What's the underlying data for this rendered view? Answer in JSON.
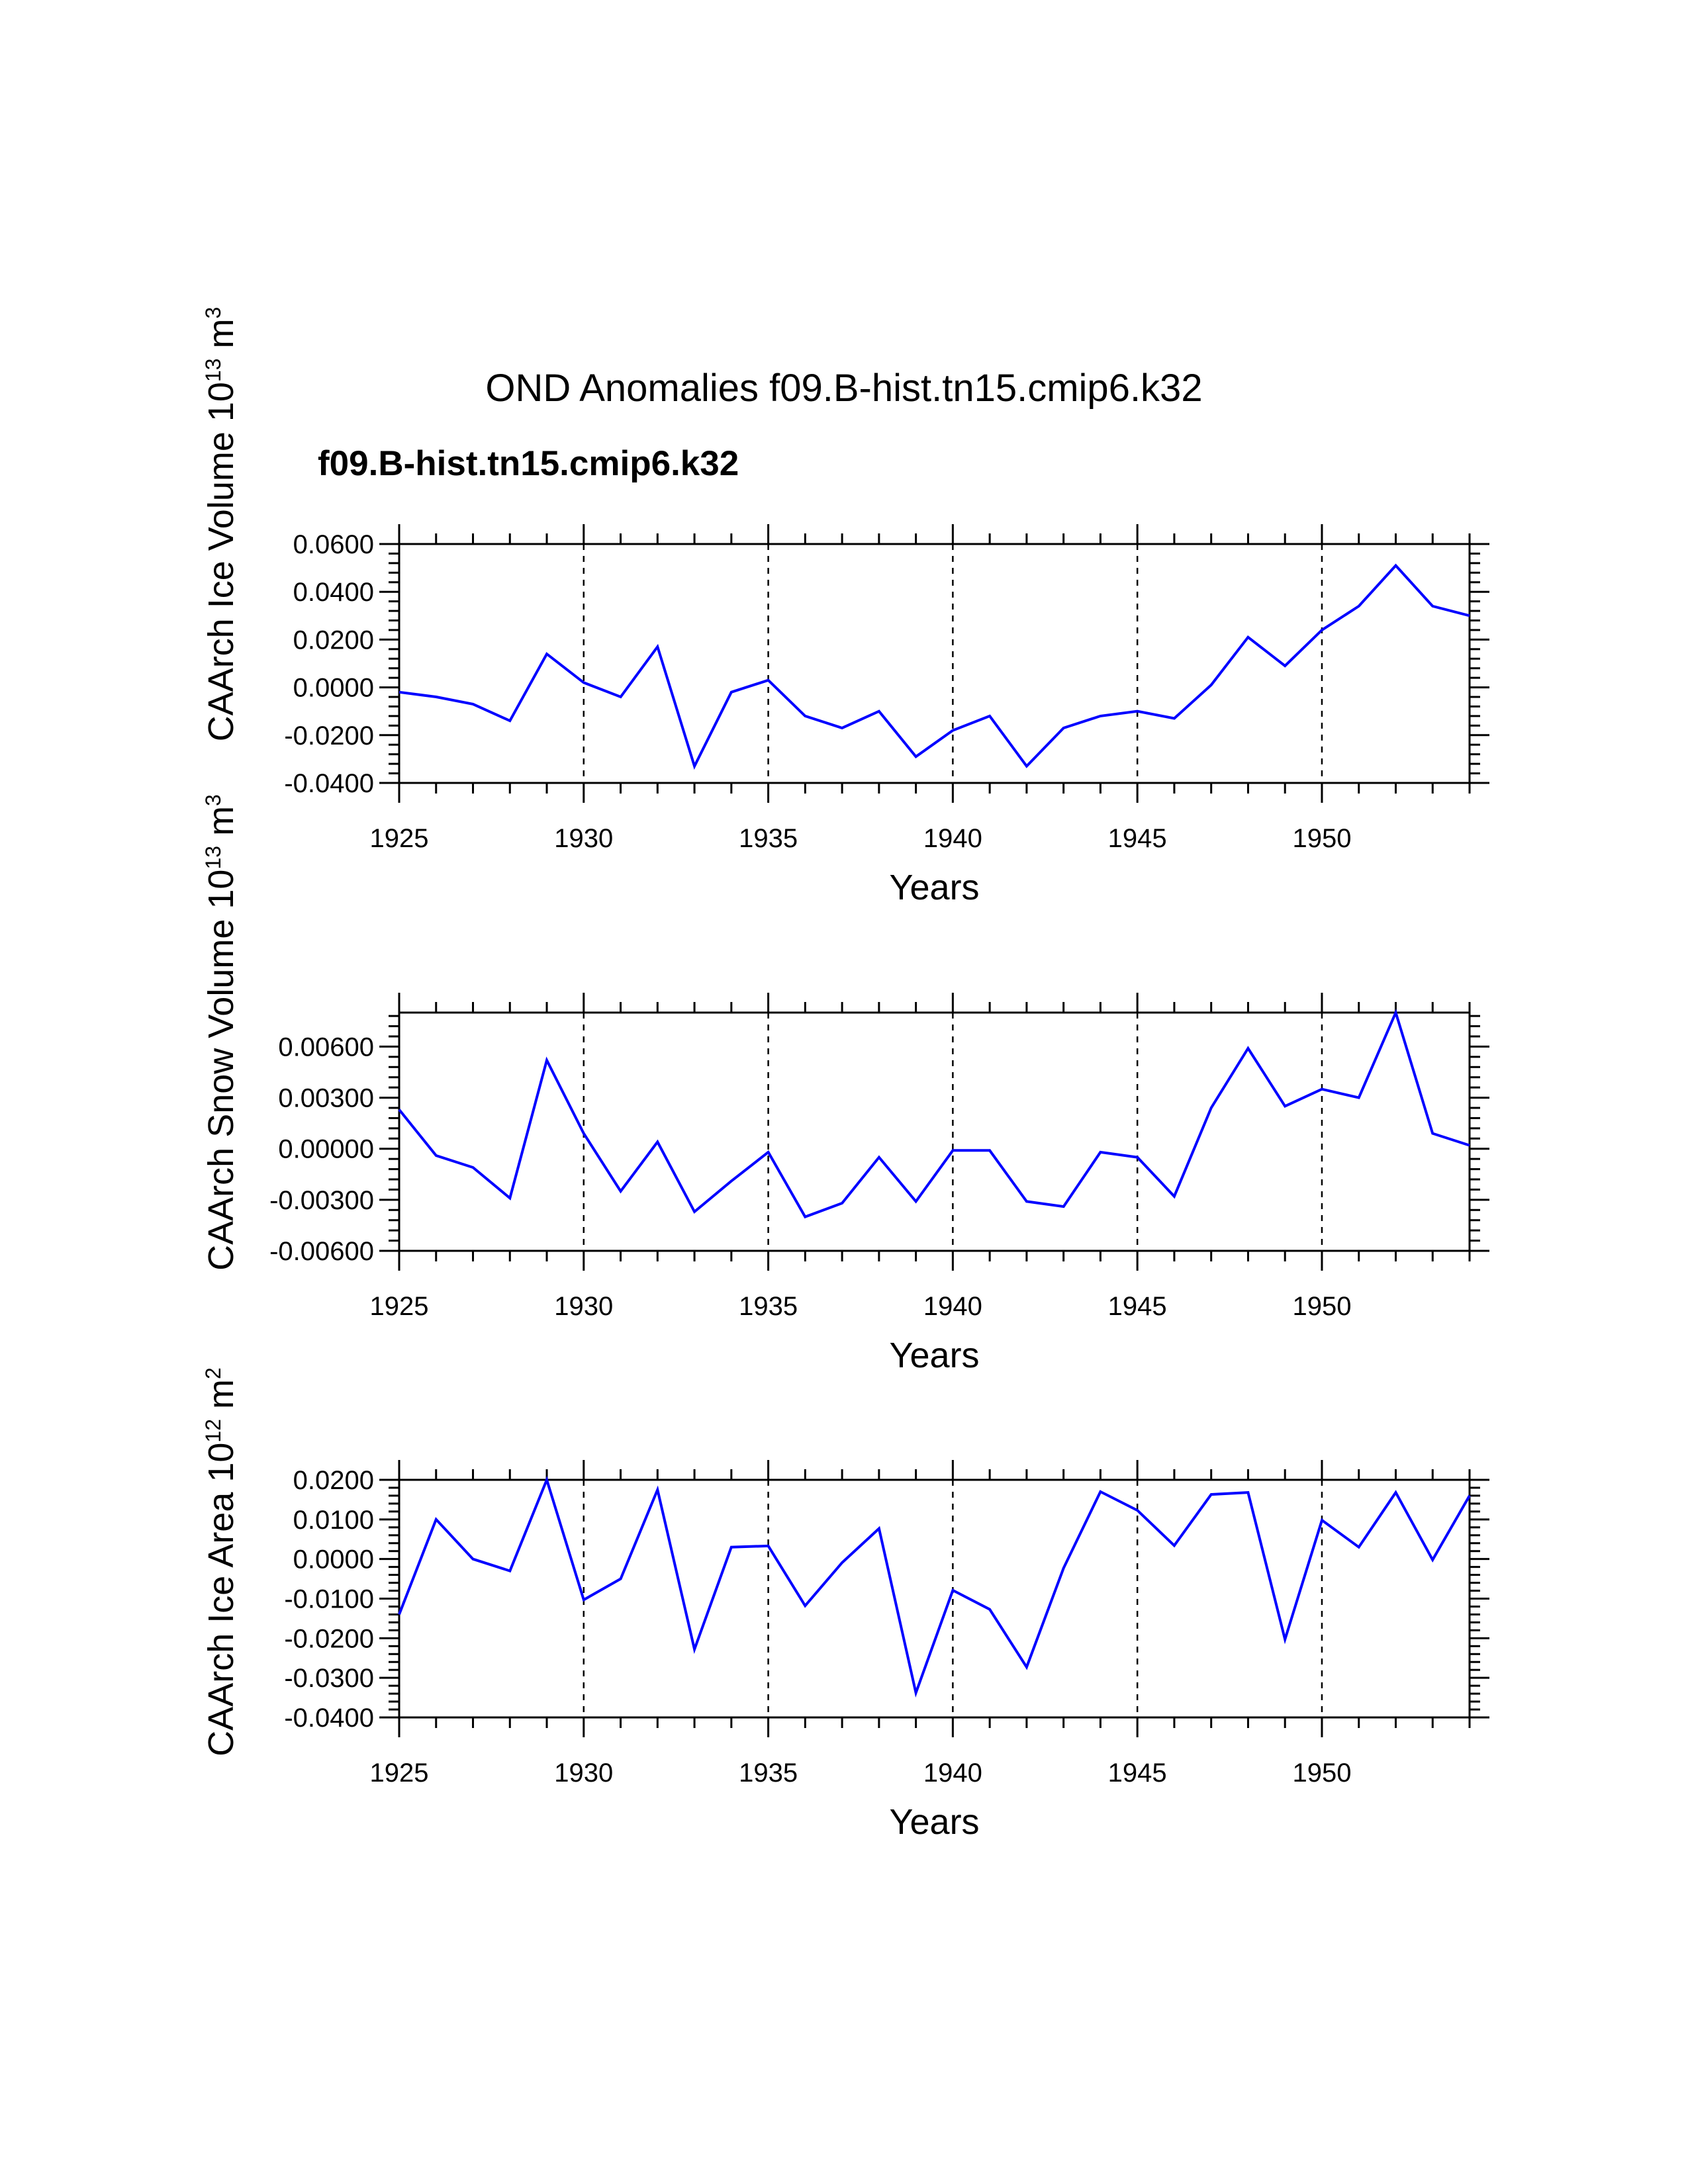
{
  "title": "OND Anomalies f09.B-hist.tn15.cmip6.k32",
  "series_label": "f09.B-hist.tn15.cmip6.k32",
  "colors": {
    "line": "#0000ff",
    "label": "#0000ff",
    "axis": "#000000"
  },
  "chart_data": [
    {
      "type": "line",
      "ylabel": {
        "text": "CAArch Ice Volume 10",
        "exp": "13",
        "unit": " m",
        "unit_exp": "3"
      },
      "xlabel": "Years",
      "xlim": [
        1925,
        1954
      ],
      "ylim": [
        -0.04,
        0.06
      ],
      "yticks": [
        -0.04,
        -0.02,
        0.0,
        0.02,
        0.04,
        0.06
      ],
      "ytick_labels": [
        "-0.0400",
        "-0.0200",
        "0.0000",
        "0.0200",
        "0.0400",
        "0.0600"
      ],
      "xticks": [
        1925,
        1930,
        1935,
        1940,
        1945,
        1950
      ],
      "xtick_labels": [
        "1925",
        "1930",
        "1935",
        "1940",
        "1945",
        "1950"
      ],
      "grid_x": [
        1930,
        1935,
        1940,
        1945,
        1950
      ],
      "series": [
        {
          "name": "f09.B-hist.tn15.cmip6.k32",
          "x": [
            1925,
            1926,
            1927,
            1928,
            1929,
            1930,
            1931,
            1932,
            1933,
            1934,
            1935,
            1936,
            1937,
            1938,
            1939,
            1940,
            1941,
            1942,
            1943,
            1944,
            1945,
            1946,
            1947,
            1948,
            1949,
            1950,
            1951,
            1952,
            1953,
            1954
          ],
          "values": [
            -0.002,
            -0.004,
            -0.007,
            -0.014,
            0.014,
            0.002,
            -0.004,
            0.017,
            -0.033,
            -0.002,
            0.003,
            -0.012,
            -0.017,
            -0.01,
            -0.029,
            -0.018,
            -0.012,
            -0.033,
            -0.017,
            -0.012,
            -0.01,
            -0.013,
            0.001,
            0.021,
            0.009,
            0.024,
            0.034,
            0.051,
            0.034,
            0.03
          ]
        }
      ]
    },
    {
      "type": "line",
      "ylabel": {
        "text": "CAArch Snow Volume 10",
        "exp": "13",
        "unit": " m",
        "unit_exp": "3"
      },
      "xlabel": "Years",
      "xlim": [
        1925,
        1954
      ],
      "ylim": [
        -0.006,
        0.008
      ],
      "yticks": [
        -0.006,
        -0.003,
        0.0,
        0.003,
        0.006
      ],
      "ytick_labels": [
        "-0.00600",
        "-0.00300",
        "0.00000",
        "0.00300",
        "0.00600"
      ],
      "xticks": [
        1925,
        1930,
        1935,
        1940,
        1945,
        1950
      ],
      "xtick_labels": [
        "1925",
        "1930",
        "1935",
        "1940",
        "1945",
        "1950"
      ],
      "grid_x": [
        1930,
        1935,
        1940,
        1945,
        1950
      ],
      "series": [
        {
          "name": "f09.B-hist.tn15.cmip6.k32",
          "x": [
            1925,
            1926,
            1927,
            1928,
            1929,
            1930,
            1931,
            1932,
            1933,
            1934,
            1935,
            1936,
            1937,
            1938,
            1939,
            1940,
            1941,
            1942,
            1943,
            1944,
            1945,
            1946,
            1947,
            1948,
            1949,
            1950,
            1951,
            1952,
            1953,
            1954
          ],
          "values": [
            0.0023,
            -0.0004,
            -0.0011,
            -0.0029,
            0.0052,
            0.0009,
            -0.0025,
            0.0004,
            -0.0037,
            -0.0019,
            -0.0002,
            -0.004,
            -0.0032,
            -0.0005,
            -0.0031,
            -0.0001,
            -0.0001,
            -0.0031,
            -0.0034,
            -0.0002,
            -0.0005,
            -0.0028,
            0.0024,
            0.0059,
            0.0025,
            0.0035,
            0.003,
            0.008,
            0.0009,
            0.0002
          ]
        }
      ]
    },
    {
      "type": "line",
      "ylabel": {
        "text": "CAArch Ice Area 10",
        "exp": "12",
        "unit": " m",
        "unit_exp": "2"
      },
      "xlabel": "Years",
      "xlim": [
        1925,
        1954
      ],
      "ylim": [
        -0.04,
        0.02
      ],
      "yticks": [
        -0.04,
        -0.03,
        -0.02,
        -0.01,
        0.0,
        0.01,
        0.02
      ],
      "ytick_labels": [
        "-0.0400",
        "-0.0300",
        "-0.0200",
        "-0.0100",
        "0.0000",
        "0.0100",
        "0.0200"
      ],
      "xticks": [
        1925,
        1930,
        1935,
        1940,
        1945,
        1950
      ],
      "xtick_labels": [
        "1925",
        "1930",
        "1935",
        "1940",
        "1945",
        "1950"
      ],
      "grid_x": [
        1930,
        1935,
        1940,
        1945,
        1950
      ],
      "series": [
        {
          "name": "f09.B-hist.tn15.cmip6.k32",
          "x": [
            1925,
            1926,
            1927,
            1928,
            1929,
            1930,
            1931,
            1932,
            1933,
            1934,
            1935,
            1936,
            1937,
            1938,
            1939,
            1940,
            1941,
            1942,
            1943,
            1944,
            1945,
            1946,
            1947,
            1948,
            1949,
            1950,
            1951,
            1952,
            1953,
            1954
          ],
          "values": [
            -0.014,
            0.01,
            0.0,
            -0.003,
            0.02,
            -0.0103,
            -0.005,
            0.0175,
            -0.0228,
            0.003,
            0.0033,
            -0.0118,
            -0.0009,
            0.0077,
            -0.0338,
            -0.0079,
            -0.0127,
            -0.0273,
            -0.0023,
            0.017,
            0.0123,
            0.0034,
            0.0163,
            0.0168,
            -0.0203,
            0.0098,
            0.003,
            0.0168,
            -0.0002,
            0.016
          ]
        }
      ]
    }
  ]
}
